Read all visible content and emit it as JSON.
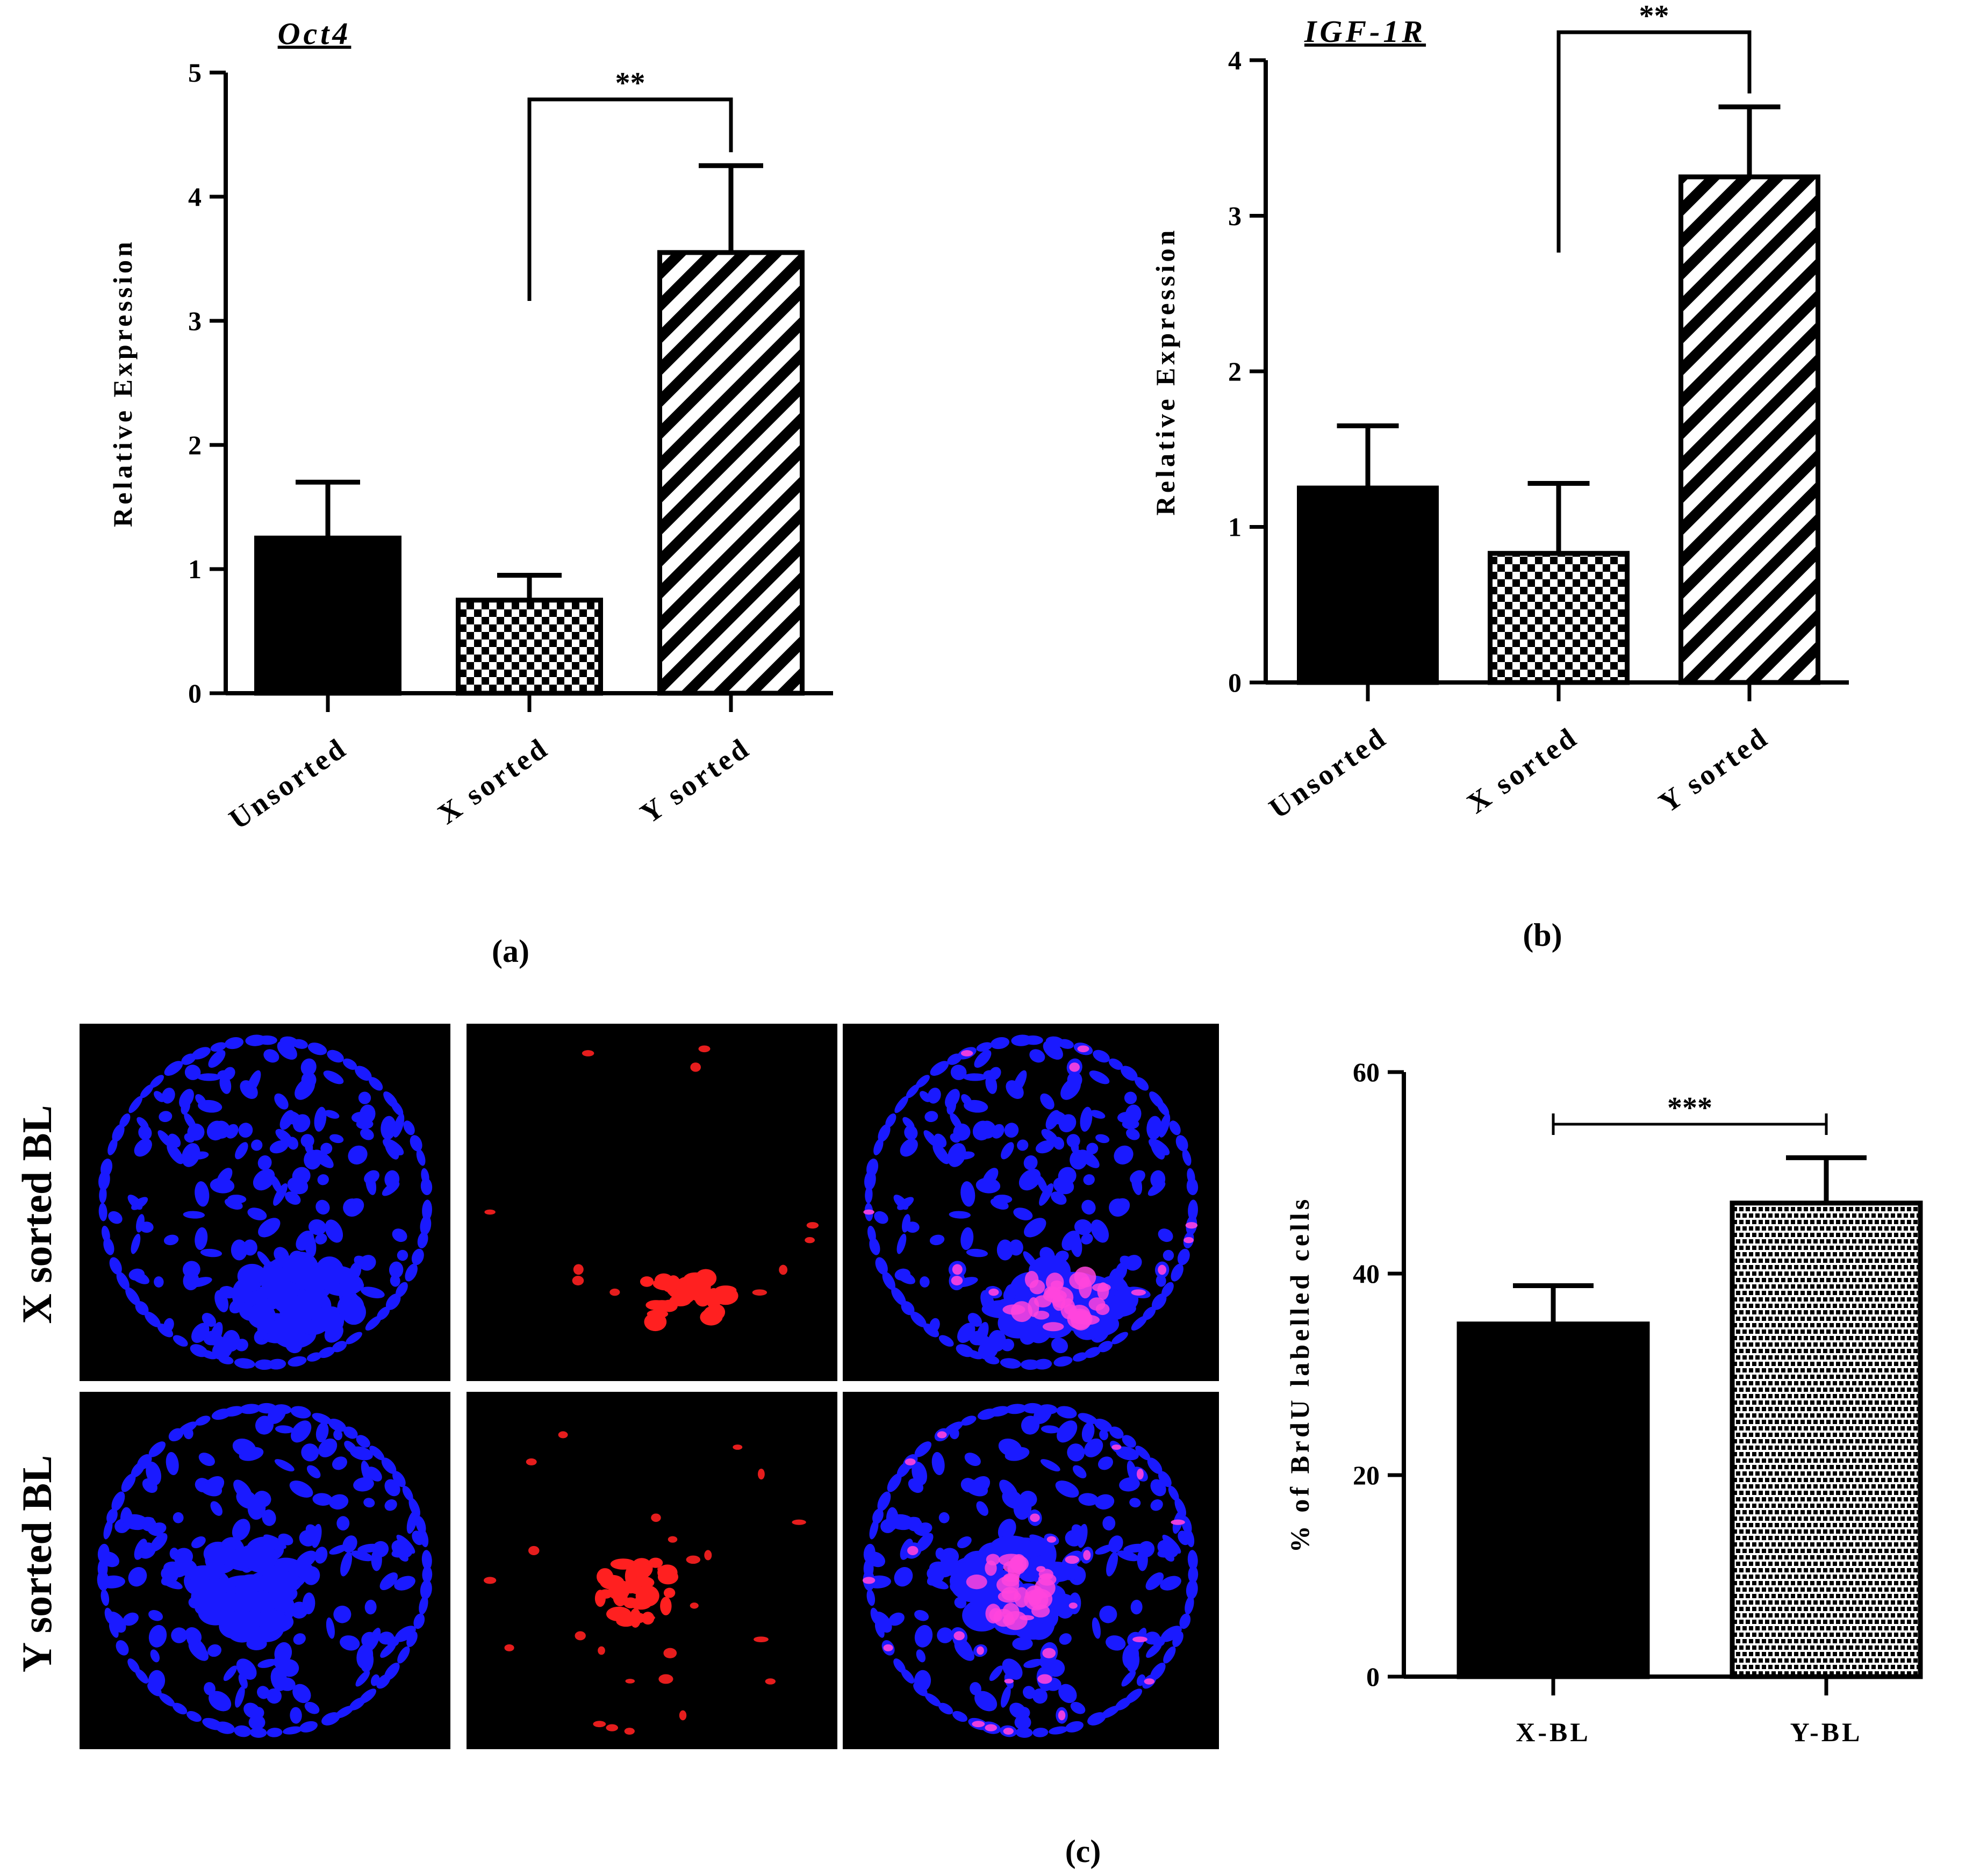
{
  "chart_data": [
    {
      "id": "a",
      "type": "bar",
      "title": "Oct4",
      "ylabel": "Relative Expression",
      "xlabel": "",
      "ylim": [
        0,
        5
      ],
      "yticks": [
        "0",
        "1",
        "2",
        "3",
        "4",
        "5"
      ],
      "categories": [
        "Unsorted",
        "X sorted",
        "Y sorted"
      ],
      "values": [
        1.25,
        0.75,
        3.55
      ],
      "errors": [
        0.45,
        0.2,
        0.7
      ],
      "fills": [
        "solid",
        "checker",
        "diagonal"
      ],
      "significance": {
        "from": 1,
        "to": 2,
        "label": "**"
      },
      "panel_label": "(a)"
    },
    {
      "id": "b",
      "type": "bar",
      "title": "IGF-1R",
      "ylabel": "Relative Expression",
      "xlabel": "",
      "ylim": [
        0,
        4
      ],
      "yticks": [
        "0",
        "1",
        "2",
        "3",
        "4"
      ],
      "categories": [
        "Unsorted",
        "X sorted",
        "Y sorted"
      ],
      "values": [
        1.25,
        0.83,
        3.25
      ],
      "errors": [
        0.4,
        0.45,
        0.45
      ],
      "fills": [
        "solid",
        "checker",
        "diagonal"
      ],
      "significance": {
        "from": 1,
        "to": 2,
        "label": "**"
      },
      "panel_label": "(b)"
    },
    {
      "id": "c",
      "type": "bar",
      "title": "",
      "ylabel": "% of BrdU labelled cells",
      "xlabel": "",
      "ylim": [
        0,
        60
      ],
      "yticks": [
        "0",
        "20",
        "40",
        "60"
      ],
      "categories": [
        "X-BL",
        "Y-BL"
      ],
      "values": [
        35,
        47
      ],
      "errors": [
        3.8,
        4.5
      ],
      "fills": [
        "solid",
        "brick"
      ],
      "significance": {
        "from": 0,
        "to": 1,
        "label": "***"
      },
      "panel_label": "(c)"
    }
  ],
  "image_panel": {
    "rows": [
      "X sorted BL",
      "Y sorted BL"
    ],
    "channels": [
      "blue",
      "red",
      "merge"
    ]
  },
  "colors": {
    "nuclei_blue": "#1a1aff",
    "brdu_red": "#ff2020",
    "merge_pink": "#ff44dd",
    "bar_black": "#000000"
  }
}
